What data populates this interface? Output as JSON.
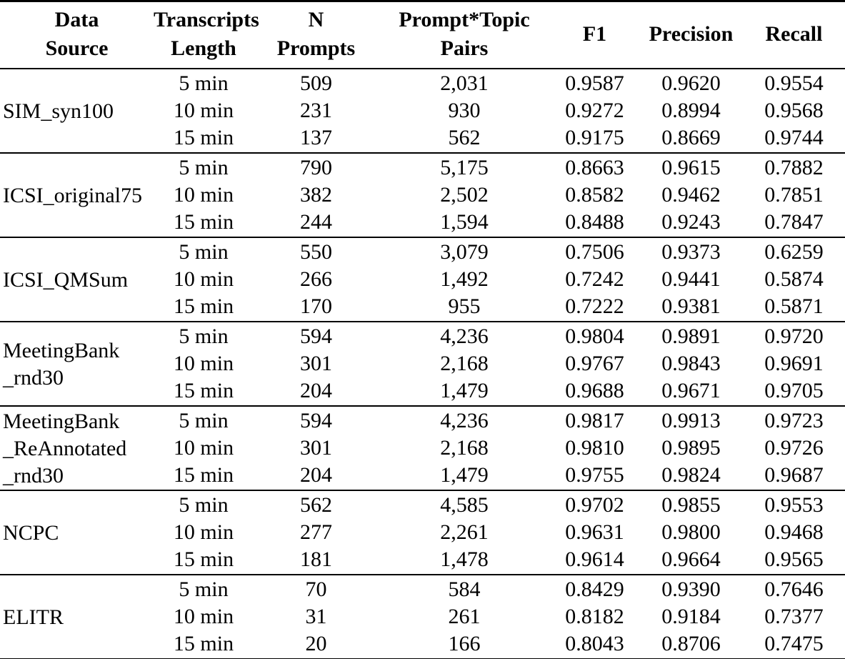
{
  "table": {
    "columns": [
      {
        "key": "source",
        "label": "Data\nSource"
      },
      {
        "key": "length",
        "label": "Transcripts\nLength"
      },
      {
        "key": "n_prompts",
        "label": "N\nPrompts"
      },
      {
        "key": "pairs",
        "label": "Prompt*Topic\nPairs"
      },
      {
        "key": "f1",
        "label": "F1"
      },
      {
        "key": "precision",
        "label": "Precision"
      },
      {
        "key": "recall",
        "label": "Recall"
      }
    ],
    "groups": [
      {
        "source": "SIM_syn100",
        "rows": [
          {
            "length": "5 min",
            "n_prompts": "509",
            "pairs": "2,031",
            "f1": "0.9587",
            "precision": "0.9620",
            "recall": "0.9554"
          },
          {
            "length": "10 min",
            "n_prompts": "231",
            "pairs": "930",
            "f1": "0.9272",
            "precision": "0.8994",
            "recall": "0.9568"
          },
          {
            "length": "15 min",
            "n_prompts": "137",
            "pairs": "562",
            "f1": "0.9175",
            "precision": "0.8669",
            "recall": "0.9744"
          }
        ]
      },
      {
        "source": "ICSI_original75",
        "rows": [
          {
            "length": "5 min",
            "n_prompts": "790",
            "pairs": "5,175",
            "f1": "0.8663",
            "precision": "0.9615",
            "recall": "0.7882"
          },
          {
            "length": "10 min",
            "n_prompts": "382",
            "pairs": "2,502",
            "f1": "0.8582",
            "precision": "0.9462",
            "recall": "0.7851"
          },
          {
            "length": "15 min",
            "n_prompts": "244",
            "pairs": "1,594",
            "f1": "0.8488",
            "precision": "0.9243",
            "recall": "0.7847"
          }
        ]
      },
      {
        "source": "ICSI_QMSum",
        "rows": [
          {
            "length": "5 min",
            "n_prompts": "550",
            "pairs": "3,079",
            "f1": "0.7506",
            "precision": "0.9373",
            "recall": "0.6259"
          },
          {
            "length": "10 min",
            "n_prompts": "266",
            "pairs": "1,492",
            "f1": "0.7242",
            "precision": "0.9441",
            "recall": "0.5874"
          },
          {
            "length": "15 min",
            "n_prompts": "170",
            "pairs": "955",
            "f1": "0.7222",
            "precision": "0.9381",
            "recall": "0.5871"
          }
        ]
      },
      {
        "source": "MeetingBank\n_rnd30",
        "rows": [
          {
            "length": "5 min",
            "n_prompts": "594",
            "pairs": "4,236",
            "f1": "0.9804",
            "precision": "0.9891",
            "recall": "0.9720"
          },
          {
            "length": "10 min",
            "n_prompts": "301",
            "pairs": "2,168",
            "f1": "0.9767",
            "precision": "0.9843",
            "recall": "0.9691"
          },
          {
            "length": "15 min",
            "n_prompts": "204",
            "pairs": "1,479",
            "f1": "0.9688",
            "precision": "0.9671",
            "recall": "0.9705"
          }
        ]
      },
      {
        "source": "MeetingBank\n_ReAnnotated\n_rnd30",
        "rows": [
          {
            "length": "5 min",
            "n_prompts": "594",
            "pairs": "4,236",
            "f1": "0.9817",
            "precision": "0.9913",
            "recall": "0.9723"
          },
          {
            "length": "10 min",
            "n_prompts": "301",
            "pairs": "2,168",
            "f1": "0.9810",
            "precision": "0.9895",
            "recall": "0.9726"
          },
          {
            "length": "15 min",
            "n_prompts": "204",
            "pairs": "1,479",
            "f1": "0.9755",
            "precision": "0.9824",
            "recall": "0.9687"
          }
        ]
      },
      {
        "source": "NCPC",
        "rows": [
          {
            "length": "5 min",
            "n_prompts": "562",
            "pairs": "4,585",
            "f1": "0.9702",
            "precision": "0.9855",
            "recall": "0.9553"
          },
          {
            "length": "10 min",
            "n_prompts": "277",
            "pairs": "2,261",
            "f1": "0.9631",
            "precision": "0.9800",
            "recall": "0.9468"
          },
          {
            "length": "15 min",
            "n_prompts": "181",
            "pairs": "1,478",
            "f1": "0.9614",
            "precision": "0.9664",
            "recall": "0.9565"
          }
        ]
      },
      {
        "source": "ELITR",
        "rows": [
          {
            "length": "5 min",
            "n_prompts": "70",
            "pairs": "584",
            "f1": "0.8429",
            "precision": "0.9390",
            "recall": "0.7646"
          },
          {
            "length": "10 min",
            "n_prompts": "31",
            "pairs": "261",
            "f1": "0.8182",
            "precision": "0.9184",
            "recall": "0.7377"
          },
          {
            "length": "15 min",
            "n_prompts": "20",
            "pairs": "166",
            "f1": "0.8043",
            "precision": "0.8706",
            "recall": "0.7475"
          }
        ]
      }
    ]
  },
  "chart_data": {
    "type": "table",
    "title": "",
    "columns": [
      "Data Source",
      "Transcripts Length",
      "N Prompts",
      "Prompt*Topic Pairs",
      "F1",
      "Precision",
      "Recall"
    ],
    "rows": [
      [
        "SIM_syn100",
        "5 min",
        509,
        2031,
        0.9587,
        0.962,
        0.9554
      ],
      [
        "SIM_syn100",
        "10 min",
        231,
        930,
        0.9272,
        0.8994,
        0.9568
      ],
      [
        "SIM_syn100",
        "15 min",
        137,
        562,
        0.9175,
        0.8669,
        0.9744
      ],
      [
        "ICSI_original75",
        "5 min",
        790,
        5175,
        0.8663,
        0.9615,
        0.7882
      ],
      [
        "ICSI_original75",
        "10 min",
        382,
        2502,
        0.8582,
        0.9462,
        0.7851
      ],
      [
        "ICSI_original75",
        "15 min",
        244,
        1594,
        0.8488,
        0.9243,
        0.7847
      ],
      [
        "ICSI_QMSum",
        "5 min",
        550,
        3079,
        0.7506,
        0.9373,
        0.6259
      ],
      [
        "ICSI_QMSum",
        "10 min",
        266,
        1492,
        0.7242,
        0.9441,
        0.5874
      ],
      [
        "ICSI_QMSum",
        "15 min",
        170,
        955,
        0.7222,
        0.9381,
        0.5871
      ],
      [
        "MeetingBank_rnd30",
        "5 min",
        594,
        4236,
        0.9804,
        0.9891,
        0.972
      ],
      [
        "MeetingBank_rnd30",
        "10 min",
        301,
        2168,
        0.9767,
        0.9843,
        0.9691
      ],
      [
        "MeetingBank_rnd30",
        "15 min",
        204,
        1479,
        0.9688,
        0.9671,
        0.9705
      ],
      [
        "MeetingBank_ReAnnotated_rnd30",
        "5 min",
        594,
        4236,
        0.9817,
        0.9913,
        0.9723
      ],
      [
        "MeetingBank_ReAnnotated_rnd30",
        "10 min",
        301,
        2168,
        0.981,
        0.9895,
        0.9726
      ],
      [
        "MeetingBank_ReAnnotated_rnd30",
        "15 min",
        204,
        1479,
        0.9755,
        0.9824,
        0.9687
      ],
      [
        "NCPC",
        "5 min",
        562,
        4585,
        0.9702,
        0.9855,
        0.9553
      ],
      [
        "NCPC",
        "10 min",
        277,
        2261,
        0.9631,
        0.98,
        0.9468
      ],
      [
        "NCPC",
        "15 min",
        181,
        1478,
        0.9614,
        0.9664,
        0.9565
      ],
      [
        "ELITR",
        "5 min",
        70,
        584,
        0.8429,
        0.939,
        0.7646
      ],
      [
        "ELITR",
        "10 min",
        31,
        261,
        0.8182,
        0.9184,
        0.7377
      ],
      [
        "ELITR",
        "15 min",
        20,
        166,
        0.8043,
        0.8706,
        0.7475
      ]
    ]
  }
}
